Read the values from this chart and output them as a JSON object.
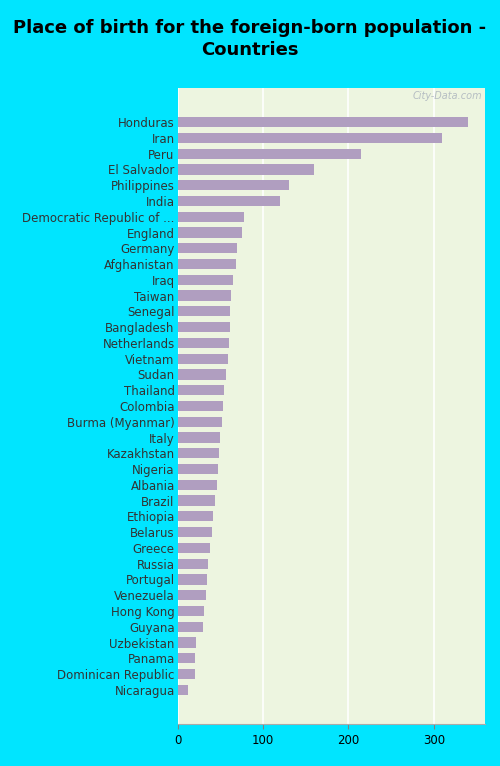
{
  "title": "Place of birth for the foreign-born population -\nCountries",
  "categories": [
    "Honduras",
    "Iran",
    "Peru",
    "El Salvador",
    "Philippines",
    "India",
    "Democratic Republic of ...",
    "England",
    "Germany",
    "Afghanistan",
    "Iraq",
    "Taiwan",
    "Senegal",
    "Bangladesh",
    "Netherlands",
    "Vietnam",
    "Sudan",
    "Thailand",
    "Colombia",
    "Burma (Myanmar)",
    "Italy",
    "Kazakhstan",
    "Nigeria",
    "Albania",
    "Brazil",
    "Ethiopia",
    "Belarus",
    "Greece",
    "Russia",
    "Portugal",
    "Venezuela",
    "Hong Kong",
    "Guyana",
    "Uzbekistan",
    "Panama",
    "Dominican Republic",
    "Nicaragua"
  ],
  "values": [
    340,
    310,
    215,
    160,
    130,
    120,
    78,
    75,
    70,
    68,
    65,
    63,
    62,
    61,
    60,
    59,
    57,
    55,
    53,
    52,
    50,
    48,
    47,
    46,
    44,
    42,
    40,
    38,
    36,
    35,
    33,
    31,
    30,
    22,
    21,
    20,
    12
  ],
  "bar_color": "#b09ec0",
  "fig_bg_color": "#00e5ff",
  "title_fontsize": 13,
  "tick_fontsize": 8.5,
  "xlim": [
    0,
    360
  ],
  "xticks": [
    0,
    100,
    200,
    300
  ],
  "watermark": "City-Data.com"
}
